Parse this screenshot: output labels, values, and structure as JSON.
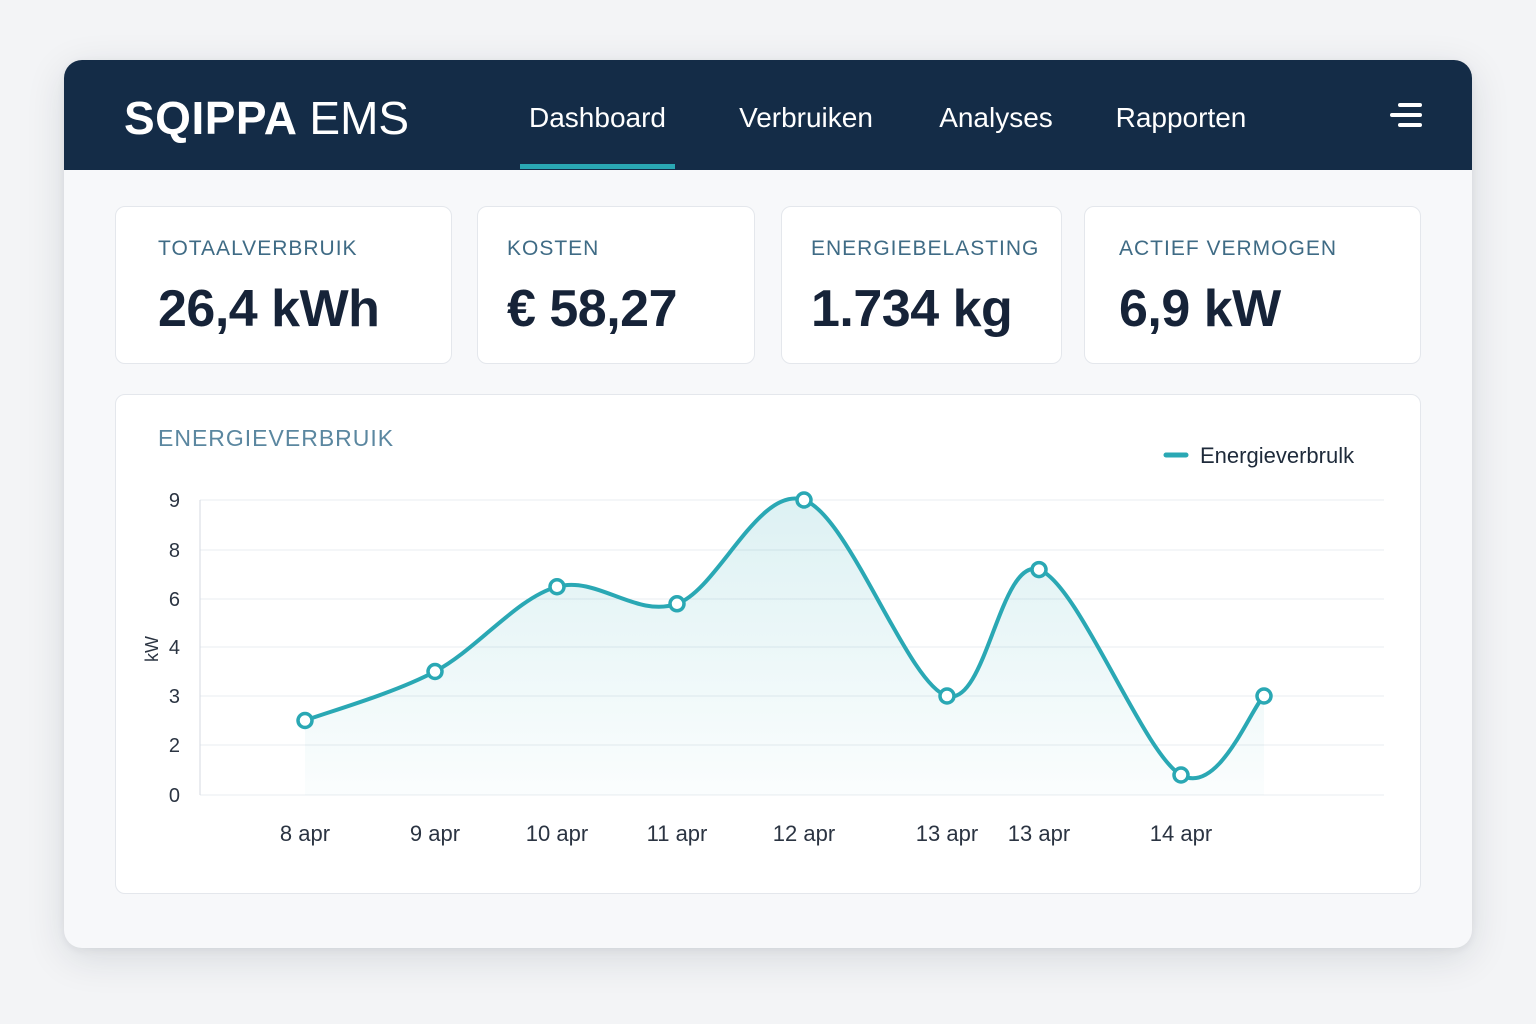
{
  "header": {
    "brand_bold": "SQIPPA",
    "brand_light": "EMS",
    "nav": [
      {
        "label": "Dashboard",
        "active": true
      },
      {
        "label": "Verbruiken",
        "active": false
      },
      {
        "label": "Analyses",
        "active": false
      },
      {
        "label": "Rapporten",
        "active": false
      }
    ],
    "menu_icon": "menu-icon"
  },
  "cards": [
    {
      "label": "TOTAALVERBRUIK",
      "value": "26,4 kWh"
    },
    {
      "label": "KOSTEN",
      "value": "€ 58,27"
    },
    {
      "label": "ENERGIEBELASTING",
      "value": "1.734 kg"
    },
    {
      "label": "ACTIEF VERMOGEN",
      "value": "6,9 kW"
    }
  ],
  "colors": {
    "header_bg": "#142c47",
    "accent": "#2aa8b4",
    "label": "#3f6b85",
    "value": "#162338"
  },
  "chart_data": {
    "type": "line",
    "title": "ENERGIEVERBRUIK",
    "ylabel": "kW",
    "xlabel": "",
    "y_ticks": [
      "0",
      "2",
      "3",
      "4",
      "6",
      "8",
      "9"
    ],
    "categories": [
      "8 apr",
      "9 apr",
      "10 apr",
      "11 apr",
      "12 apr",
      "13 apr",
      "13 apr",
      "14 apr"
    ],
    "series": [
      {
        "name": "Energieverbrulk",
        "x": [
          "8 apr",
          "9 apr",
          "10 apr",
          "11 apr",
          "12 apr",
          "13 apr",
          "13 apr",
          "14 apr",
          ""
        ],
        "values": [
          2.5,
          3.5,
          6.5,
          5.8,
          9.0,
          3.0,
          7.2,
          0.8,
          3.0
        ]
      }
    ],
    "grid": true,
    "legend": "top-right"
  }
}
